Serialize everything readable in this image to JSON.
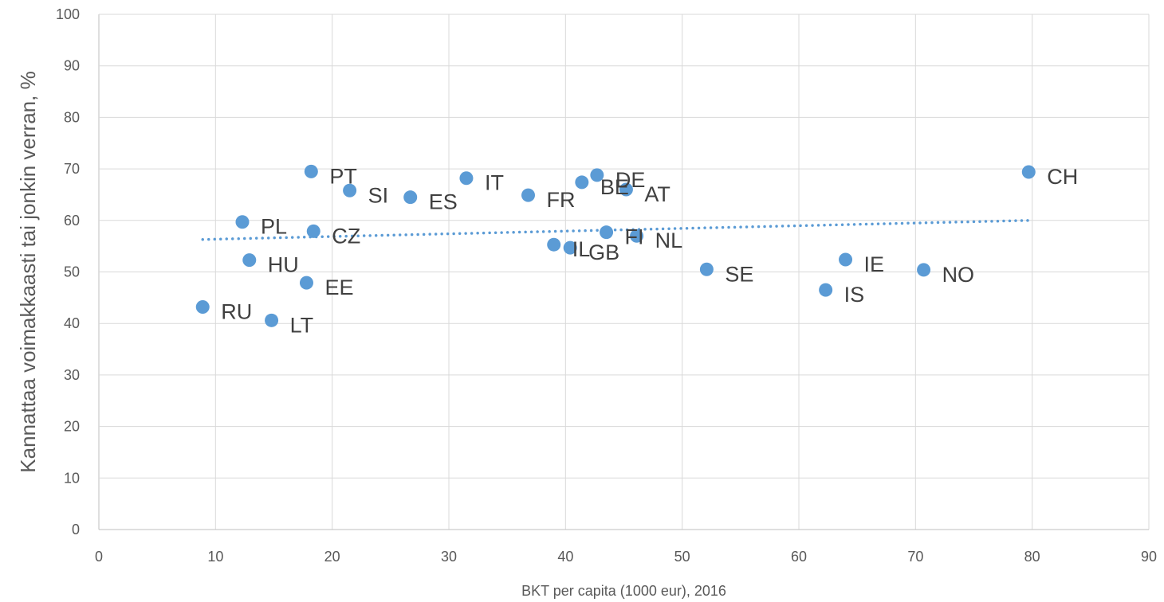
{
  "chart_data": {
    "type": "scatter",
    "title": "",
    "xlabel": "BKT per capita (1000 eur), 2016",
    "ylabel": "Kannattaa voimakkaasti tai jonkin verran, %",
    "xlim": [
      0,
      90
    ],
    "ylim": [
      0,
      100
    ],
    "xticks": [
      0,
      10,
      20,
      30,
      40,
      50,
      60,
      70,
      80,
      90
    ],
    "yticks": [
      0,
      10,
      20,
      30,
      40,
      50,
      60,
      70,
      80,
      90,
      100
    ],
    "grid": true,
    "marker_color": "#5b9bd5",
    "trendline": {
      "type": "linear",
      "style": "dotted",
      "color": "#5b9bd5",
      "x": [
        8.9,
        79.7
      ],
      "y": [
        56.3,
        60.0
      ]
    },
    "points": [
      {
        "label": "PT",
        "x": 18.2,
        "y": 69.5
      },
      {
        "label": "SI",
        "x": 21.5,
        "y": 65.8
      },
      {
        "label": "ES",
        "x": 26.7,
        "y": 64.5
      },
      {
        "label": "IT",
        "x": 31.5,
        "y": 68.2
      },
      {
        "label": "FR",
        "x": 36.8,
        "y": 64.9
      },
      {
        "label": "BE",
        "x": 41.4,
        "y": 67.4
      },
      {
        "label": "DE",
        "x": 42.7,
        "y": 68.8
      },
      {
        "label": "AT",
        "x": 45.2,
        "y": 66.0
      },
      {
        "label": "CH",
        "x": 79.7,
        "y": 69.4
      },
      {
        "label": "PL",
        "x": 12.3,
        "y": 59.7
      },
      {
        "label": "CZ",
        "x": 18.4,
        "y": 57.9
      },
      {
        "label": "HU",
        "x": 12.9,
        "y": 52.3
      },
      {
        "label": "EE",
        "x": 17.8,
        "y": 47.9
      },
      {
        "label": "RU",
        "x": 8.9,
        "y": 43.2
      },
      {
        "label": "LT",
        "x": 14.8,
        "y": 40.6
      },
      {
        "label": "IL",
        "x": 39.0,
        "y": 55.3
      },
      {
        "label": "GB",
        "x": 40.4,
        "y": 54.7
      },
      {
        "label": "FI",
        "x": 43.5,
        "y": 57.7
      },
      {
        "label": "NL",
        "x": 46.1,
        "y": 57.0
      },
      {
        "label": "SE",
        "x": 52.1,
        "y": 50.5
      },
      {
        "label": "IE",
        "x": 64.0,
        "y": 52.4
      },
      {
        "label": "IS",
        "x": 62.3,
        "y": 46.5
      },
      {
        "label": "NO",
        "x": 70.7,
        "y": 50.4
      }
    ]
  }
}
